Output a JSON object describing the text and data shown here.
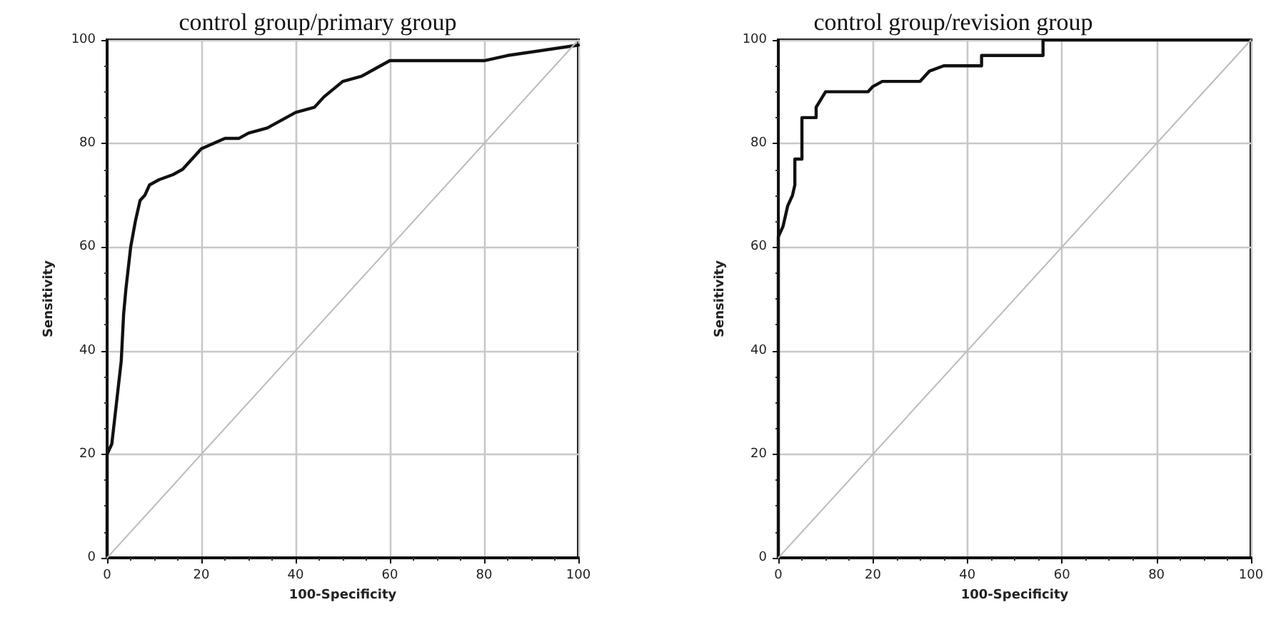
{
  "chart_data": [
    {
      "type": "line",
      "title": "control group/primary group",
      "xlabel": "100-Specificity",
      "ylabel": "Sensitivity",
      "xlim": [
        0,
        100
      ],
      "ylim": [
        0,
        100
      ],
      "xticks": [
        0,
        20,
        40,
        60,
        80,
        100
      ],
      "yticks": [
        0,
        20,
        40,
        60,
        80,
        100
      ],
      "grid": true,
      "marker": "none",
      "line_style": "solid",
      "series": [
        {
          "color": "#111111",
          "x": [
            0,
            0,
            1,
            2,
            3,
            3.5,
            4,
            5,
            6,
            7,
            8,
            9,
            11,
            14,
            16,
            18,
            20,
            25,
            28,
            30,
            34,
            38,
            40,
            44,
            46,
            50,
            54,
            58,
            60,
            80,
            85,
            100
          ],
          "values": [
            0,
            20,
            22,
            30,
            38,
            47,
            52,
            60,
            65,
            69,
            70,
            72,
            73,
            74,
            75,
            77,
            79,
            81,
            81,
            82,
            83,
            85,
            86,
            87,
            89,
            92,
            93,
            95,
            96,
            96,
            97,
            99
          ]
        },
        {
          "color": "#bbbbbb",
          "x": [
            0,
            100
          ],
          "values": [
            0,
            100
          ]
        }
      ]
    },
    {
      "type": "line",
      "title": "control group/revision group",
      "xlabel": "100-Specificity",
      "ylabel": "Sensitivity",
      "xlim": [
        0,
        100
      ],
      "ylim": [
        0,
        100
      ],
      "xticks": [
        0,
        20,
        40,
        60,
        80,
        100
      ],
      "yticks": [
        0,
        20,
        40,
        60,
        80,
        100
      ],
      "grid": true,
      "marker": "none",
      "line_style": "solid",
      "series": [
        {
          "color": "#111111",
          "x": [
            0,
            0,
            1,
            2,
            3,
            3.5,
            3.5,
            5,
            5,
            8,
            8,
            10,
            19,
            20,
            22,
            30,
            32,
            35,
            43,
            43,
            56,
            56,
            100
          ],
          "values": [
            0,
            62,
            64,
            68,
            70,
            72,
            77,
            77,
            85,
            85,
            87,
            90,
            90,
            91,
            92,
            92,
            94,
            95,
            95,
            97,
            97,
            100,
            100
          ]
        },
        {
          "color": "#bbbbbb",
          "x": [
            0,
            100
          ],
          "values": [
            0,
            100
          ]
        }
      ]
    }
  ]
}
